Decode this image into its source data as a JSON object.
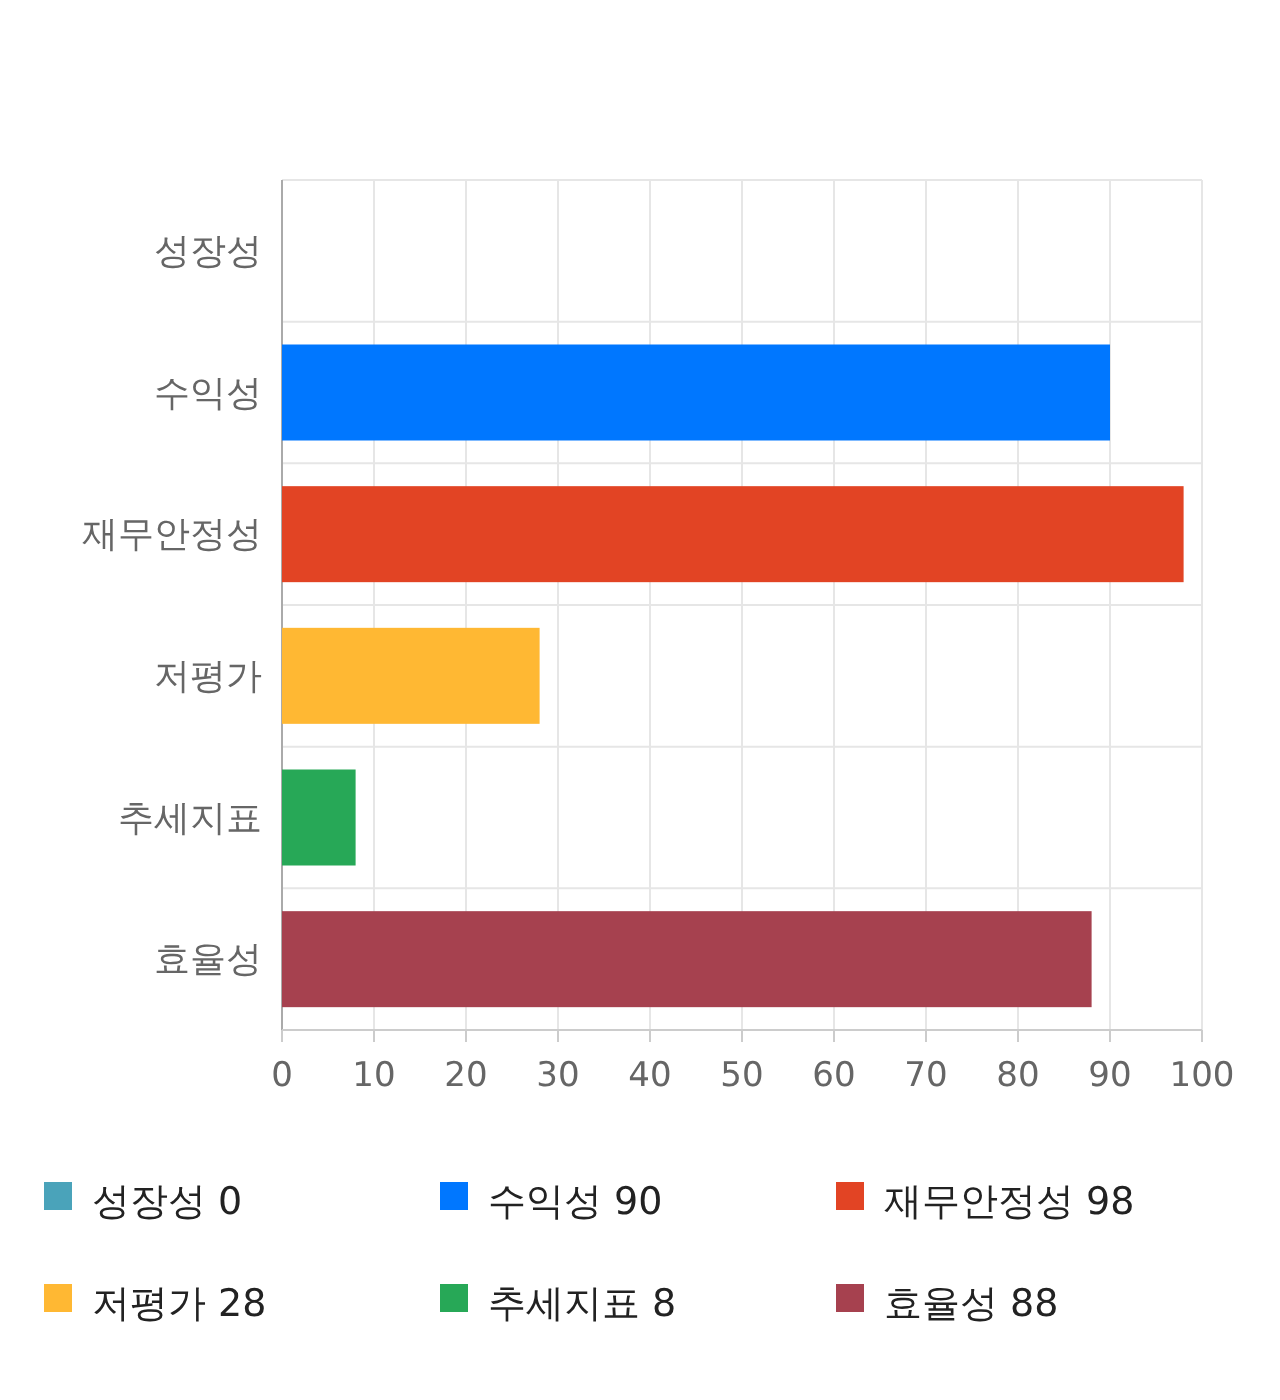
{
  "chart_data": {
    "type": "bar",
    "orientation": "horizontal",
    "stacked": true,
    "categories": [
      "성장성",
      "수익성",
      "재무안정성",
      "저평가",
      "추세지표",
      "효율성"
    ],
    "series": [
      {
        "name": "성장성 0",
        "color": "#4aa3ba",
        "values": [
          0,
          null,
          null,
          null,
          null,
          null
        ]
      },
      {
        "name": "수익성 90",
        "color": "#0077ff",
        "values": [
          null,
          90,
          null,
          null,
          null,
          null
        ]
      },
      {
        "name": "재무안정성 98",
        "color": "#e24424",
        "values": [
          null,
          null,
          98,
          null,
          null,
          null
        ]
      },
      {
        "name": "저평가 28",
        "color": "#ffb833",
        "values": [
          null,
          null,
          null,
          28,
          null,
          null
        ]
      },
      {
        "name": "추세지표 8",
        "color": "#27a857",
        "values": [
          null,
          null,
          null,
          null,
          8,
          null
        ]
      },
      {
        "name": "효율성 88",
        "color": "#a6414f",
        "values": [
          null,
          null,
          null,
          null,
          null,
          88
        ]
      }
    ],
    "xlim": [
      0,
      100
    ],
    "xticks": [
      0,
      10,
      20,
      30,
      40,
      50,
      60,
      70,
      80,
      90,
      100
    ],
    "grid": true,
    "legend": "bottom"
  }
}
